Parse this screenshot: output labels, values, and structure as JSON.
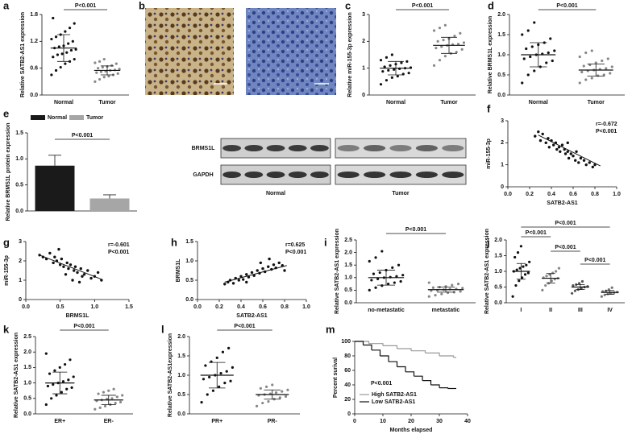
{
  "chart_data": [
    {
      "panel": "a",
      "type": "dot",
      "ylabel": "Relative SATB2-AS1 expression",
      "categories": [
        "Normal",
        "Tumor"
      ],
      "colors": [
        "#111111",
        "#888888"
      ],
      "values": [
        [
          0.45,
          0.55,
          0.62,
          0.7,
          0.75,
          0.8,
          0.85,
          0.9,
          0.92,
          0.95,
          1.0,
          1.02,
          1.05,
          1.08,
          1.1,
          1.15,
          1.2,
          1.25,
          1.3,
          1.35,
          1.42,
          1.5,
          1.6,
          1.72
        ],
        [
          0.3,
          0.35,
          0.4,
          0.42,
          0.45,
          0.48,
          0.5,
          0.52,
          0.53,
          0.55,
          0.56,
          0.58,
          0.6,
          0.62,
          0.64,
          0.66,
          0.7,
          0.72,
          0.75,
          0.8
        ]
      ],
      "means": [
        1.05,
        0.55
      ],
      "sds": [
        0.3,
        0.1
      ],
      "ylim": [
        0,
        1.8
      ],
      "yticks": [
        {
          "value": 0,
          "label": "0.0"
        },
        0.6,
        1.2,
        1.8
      ],
      "annotations": [
        "P<0.001"
      ]
    },
    {
      "panel": "b",
      "type": "image"
    },
    {
      "panel": "c",
      "type": "dot",
      "ylabel": "Relative miR-155-3p expression",
      "categories": [
        "Normal",
        "Tumor"
      ],
      "colors": [
        "#111111",
        "#888888"
      ],
      "values": [
        [
          0.4,
          0.55,
          0.65,
          0.7,
          0.78,
          0.82,
          0.88,
          0.92,
          0.95,
          0.98,
          1.0,
          1.02,
          1.05,
          1.1,
          1.15,
          1.2,
          1.25,
          1.3,
          1.4,
          1.5
        ],
        [
          1.1,
          1.3,
          1.45,
          1.55,
          1.6,
          1.7,
          1.75,
          1.8,
          1.85,
          1.88,
          1.9,
          1.95,
          2.0,
          2.05,
          2.1,
          2.2,
          2.3,
          2.4,
          2.5,
          2.6
        ]
      ],
      "means": [
        1.0,
        1.85
      ],
      "sds": [
        0.25,
        0.3
      ],
      "ylim": [
        0,
        3
      ],
      "yticks": [
        0,
        1,
        2,
        3
      ],
      "annotations": [
        "P<0.001"
      ]
    },
    {
      "panel": "d",
      "type": "dot",
      "ylabel": "Relative BRMS1L expression",
      "categories": [
        "Normal",
        "Tumor"
      ],
      "colors": [
        "#111111",
        "#888888"
      ],
      "values": [
        [
          0.3,
          0.5,
          0.6,
          0.7,
          0.8,
          0.85,
          0.9,
          0.95,
          1.0,
          1.02,
          1.05,
          1.1,
          1.15,
          1.2,
          1.25,
          1.3,
          1.4,
          1.5,
          1.6,
          1.8
        ],
        [
          0.3,
          0.38,
          0.42,
          0.48,
          0.5,
          0.54,
          0.57,
          0.6,
          0.62,
          0.64,
          0.66,
          0.7,
          0.72,
          0.75,
          0.8,
          0.85,
          0.9,
          0.95,
          1.05,
          1.1
        ]
      ],
      "means": [
        1.0,
        0.62
      ],
      "sds": [
        0.3,
        0.15
      ],
      "ylim": [
        0,
        2
      ],
      "yticks": [
        {
          "value": 0,
          "label": "0.0"
        },
        0.5,
        {
          "value": 1,
          "label": "1.0"
        },
        1.5,
        {
          "value": 2,
          "label": "2.0"
        }
      ],
      "annotations": [
        "P<0.001"
      ]
    },
    {
      "panel": "e",
      "type": "bar",
      "ylabel": "Relative BRMS1L protein expression",
      "series": [
        {
          "name": "Normal",
          "color": "#1a1a1a",
          "values": [
            0.87
          ],
          "errors": [
            0.2
          ]
        },
        {
          "name": "Tumor",
          "color": "#a6a6a6",
          "values": [
            0.24
          ],
          "errors": [
            0.07
          ]
        }
      ],
      "ylim": [
        0,
        1.5
      ],
      "yticks": [
        {
          "value": 0,
          "label": "0.0"
        },
        0.5,
        {
          "value": 1,
          "label": "1.0"
        },
        1.5
      ],
      "annotations": [
        "P<0.001"
      ],
      "blot": {
        "rows": [
          "BRMS1L",
          "GAPDH"
        ],
        "groups": [
          "Normal",
          "Tumor"
        ]
      }
    },
    {
      "panel": "f",
      "type": "scatter",
      "xlabel": "SATB2-AS1",
      "ylabel": "miR-155-3p",
      "stats": [
        "r=-0.672",
        "P<0.001"
      ],
      "x": [
        0.25,
        0.28,
        0.3,
        0.32,
        0.35,
        0.37,
        0.4,
        0.42,
        0.44,
        0.45,
        0.47,
        0.48,
        0.5,
        0.52,
        0.53,
        0.55,
        0.56,
        0.58,
        0.6,
        0.62,
        0.63,
        0.65,
        0.67,
        0.7,
        0.72,
        0.75,
        0.78,
        0.8,
        0.38,
        0.55
      ],
      "values": [
        2.3,
        2.5,
        2.1,
        2.4,
        2.0,
        2.2,
        2.1,
        1.9,
        2.0,
        1.7,
        1.8,
        1.6,
        1.9,
        1.7,
        1.5,
        1.6,
        1.3,
        1.5,
        1.4,
        1.2,
        1.6,
        1.1,
        1.3,
        1.2,
        1.0,
        1.1,
        0.9,
        1.0,
        1.8,
        2.0
      ],
      "fit_x": [
        0.28,
        0.85
      ],
      "fit_y": [
        2.35,
        0.95
      ],
      "xlim": [
        0,
        1
      ],
      "xticks": [
        {
          "value": 0,
          "label": "0.0"
        },
        0.2,
        0.4,
        0.6,
        0.8,
        {
          "value": 1,
          "label": "1.0"
        }
      ],
      "ylim": [
        0,
        3
      ],
      "yticks": [
        0,
        1,
        2,
        3
      ]
    },
    {
      "panel": "g",
      "type": "scatter",
      "xlabel": "BRMS1L",
      "ylabel": "miR-155-3p",
      "stats": [
        "r=-0.601",
        "P<0.001"
      ],
      "x": [
        0.2,
        0.25,
        0.3,
        0.35,
        0.4,
        0.42,
        0.45,
        0.5,
        0.52,
        0.55,
        0.6,
        0.62,
        0.65,
        0.7,
        0.72,
        0.75,
        0.8,
        0.82,
        0.85,
        0.9,
        0.95,
        1.0,
        1.05,
        1.1,
        0.48,
        0.68,
        0.78,
        0.58
      ],
      "values": [
        2.3,
        2.2,
        2.1,
        2.4,
        1.9,
        2.2,
        2.0,
        1.8,
        2.1,
        1.7,
        1.9,
        1.6,
        1.8,
        1.5,
        1.7,
        1.4,
        1.6,
        1.2,
        1.3,
        1.5,
        1.1,
        1.2,
        1.4,
        1.0,
        2.6,
        1.0,
        0.9,
        1.3
      ],
      "fit_x": [
        0.2,
        1.1
      ],
      "fit_y": [
        2.3,
        1.05
      ],
      "xlim": [
        0,
        1.5
      ],
      "xticks": [
        {
          "value": 0,
          "label": "0.0"
        },
        0.5,
        {
          "value": 1,
          "label": "1.0"
        },
        1.5
      ],
      "ylim": [
        0,
        3
      ],
      "yticks": [
        0,
        1,
        2,
        3
      ]
    },
    {
      "panel": "h",
      "type": "scatter",
      "xlabel": "SATB2-AS1",
      "ylabel": "BRMS1L",
      "stats": [
        "r=0.625",
        "P<0.001"
      ],
      "x": [
        0.25,
        0.28,
        0.3,
        0.33,
        0.35,
        0.38,
        0.4,
        0.42,
        0.45,
        0.47,
        0.5,
        0.52,
        0.55,
        0.57,
        0.6,
        0.62,
        0.65,
        0.68,
        0.7,
        0.72,
        0.75,
        0.78,
        0.8,
        0.45,
        0.58,
        0.66
      ],
      "values": [
        0.4,
        0.45,
        0.5,
        0.42,
        0.55,
        0.5,
        0.6,
        0.52,
        0.65,
        0.58,
        0.7,
        0.62,
        0.75,
        0.68,
        0.8,
        0.72,
        0.85,
        0.78,
        0.9,
        0.82,
        0.95,
        0.88,
        0.75,
        0.45,
        0.95,
        1.05
      ],
      "fit_x": [
        0.25,
        0.82
      ],
      "fit_y": [
        0.45,
        0.88
      ],
      "xlim": [
        0,
        1
      ],
      "xticks": [
        {
          "value": 0,
          "label": "0.0"
        },
        0.2,
        0.4,
        0.6,
        0.8,
        {
          "value": 1,
          "label": "1.0"
        }
      ],
      "ylim": [
        0,
        1.5
      ],
      "yticks": [
        {
          "value": 0,
          "label": "0.0"
        },
        0.5,
        {
          "value": 1,
          "label": "1.0"
        },
        1.5
      ]
    },
    {
      "panel": "i",
      "type": "dot",
      "ylabel": "Relative SATB2-AS1 expression",
      "categories": [
        "no-metastatic",
        "metastatic"
      ],
      "colors": [
        "#111111",
        "#888888"
      ],
      "values": [
        [
          0.5,
          0.6,
          0.68,
          0.75,
          0.8,
          0.85,
          0.9,
          0.95,
          1.0,
          1.02,
          1.05,
          1.1,
          1.15,
          1.2,
          1.3,
          1.4,
          1.5,
          1.65,
          1.8,
          2.05
        ],
        [
          0.25,
          0.3,
          0.35,
          0.4,
          0.42,
          0.45,
          0.48,
          0.5,
          0.52,
          0.54,
          0.55,
          0.58,
          0.6,
          0.62,
          0.65,
          0.7,
          0.75,
          0.8
        ]
      ],
      "means": [
        1.0,
        0.52
      ],
      "sds": [
        0.3,
        0.1
      ],
      "ylim": [
        0,
        2.5
      ],
      "yticks": [
        {
          "value": 0,
          "label": "0.0"
        },
        0.5,
        {
          "value": 1,
          "label": "1.0"
        },
        1.5,
        {
          "value": 2,
          "label": "2.0"
        },
        2.5
      ],
      "annotations": [
        "P<0.001"
      ]
    },
    {
      "panel": "j",
      "type": "dot",
      "ylabel": "Relative SATB2-AS1 expression",
      "categories": [
        "I",
        "II",
        "III",
        "IV"
      ],
      "colors": [
        "#111111",
        "#888888",
        "#555555",
        "#777777"
      ],
      "values": [
        [
          0.2,
          0.55,
          0.7,
          0.8,
          0.9,
          0.95,
          1.0,
          1.05,
          1.1,
          1.15,
          1.2,
          1.3,
          1.45,
          1.6,
          1.8
        ],
        [
          0.4,
          0.55,
          0.62,
          0.7,
          0.75,
          0.78,
          0.8,
          0.85,
          0.9,
          0.95,
          1.0,
          1.1
        ],
        [
          0.3,
          0.38,
          0.42,
          0.46,
          0.5,
          0.52,
          0.55,
          0.58,
          0.62,
          0.68
        ],
        [
          0.2,
          0.25,
          0.28,
          0.3,
          0.32,
          0.34,
          0.36,
          0.38,
          0.42,
          0.48
        ]
      ],
      "means": [
        1.0,
        0.78,
        0.5,
        0.33
      ],
      "sds": [
        0.25,
        0.15,
        0.08,
        0.06
      ],
      "ylim": [
        0,
        2
      ],
      "yticks": [
        {
          "value": 0,
          "label": "0.0"
        },
        0.5,
        {
          "value": 1,
          "label": "1.0"
        },
        1.5,
        {
          "value": 2,
          "label": "2.0"
        }
      ],
      "annotations": [
        "P<0.001",
        "P<0.001",
        "P<0.001",
        "P<0.001"
      ]
    },
    {
      "panel": "k",
      "type": "dot",
      "ylabel": "Relative SATB2-AS1 expression",
      "categories": [
        "ER+",
        "ER-"
      ],
      "colors": [
        "#111111",
        "#888888"
      ],
      "values": [
        [
          0.3,
          0.5,
          0.6,
          0.7,
          0.8,
          0.85,
          0.9,
          0.95,
          1.0,
          1.05,
          1.1,
          1.2,
          1.3,
          1.4,
          1.5,
          1.6,
          1.75,
          1.95
        ],
        [
          0.15,
          0.2,
          0.25,
          0.3,
          0.35,
          0.38,
          0.42,
          0.45,
          0.48,
          0.5,
          0.55,
          0.6,
          0.65,
          0.7,
          0.75,
          0.8
        ]
      ],
      "means": [
        1.0,
        0.45
      ],
      "sds": [
        0.35,
        0.15
      ],
      "ylim": [
        0,
        2.5
      ],
      "yticks": [
        {
          "value": 0,
          "label": "0.0"
        },
        0.5,
        {
          "value": 1,
          "label": "1.0"
        },
        1.5,
        {
          "value": 2,
          "label": "2.0"
        },
        2.5
      ],
      "annotations": [
        "P<0.001"
      ]
    },
    {
      "panel": "l",
      "type": "dot",
      "ylabel": "Relative SATB2-AS1expression",
      "categories": [
        "PR+",
        "PR-"
      ],
      "colors": [
        "#111111",
        "#888888"
      ],
      "values": [
        [
          0.3,
          0.5,
          0.6,
          0.7,
          0.8,
          0.85,
          0.9,
          0.95,
          1.0,
          1.05,
          1.1,
          1.2,
          1.25,
          1.35,
          1.45,
          1.6,
          1.7
        ],
        [
          0.2,
          0.28,
          0.32,
          0.38,
          0.42,
          0.45,
          0.48,
          0.5,
          0.52,
          0.55,
          0.58,
          0.62,
          0.66,
          0.7,
          0.75
        ]
      ],
      "means": [
        1.0,
        0.5
      ],
      "sds": [
        0.33,
        0.12
      ],
      "ylim": [
        0,
        2
      ],
      "yticks": [
        {
          "value": 0,
          "label": "0.0"
        },
        0.5,
        {
          "value": 1,
          "label": "1.0"
        },
        1.5,
        {
          "value": 2,
          "label": "2.0"
        }
      ],
      "annotations": [
        "P<0.001"
      ]
    },
    {
      "panel": "m",
      "type": "survival",
      "xlabel": "Months elapsed",
      "ylabel": "Percent surival",
      "annotations": [
        "P<0.001"
      ],
      "series": [
        {
          "name": "High SATB2-AS1",
          "color": "#999999",
          "x": [
            0,
            5,
            10,
            15,
            20,
            25,
            30,
            35,
            36
          ],
          "values": [
            100,
            97,
            94,
            90,
            87,
            84,
            80,
            78,
            78
          ]
        },
        {
          "name": "Low SATB2-AS1",
          "color": "#111111",
          "x": [
            0,
            3,
            6,
            9,
            12,
            15,
            18,
            21,
            24,
            27,
            30,
            33,
            36
          ],
          "values": [
            100,
            95,
            88,
            80,
            72,
            65,
            58,
            52,
            46,
            40,
            36,
            35,
            35
          ]
        }
      ],
      "xlim": [
        0,
        40
      ],
      "xticks": [
        0,
        10,
        20,
        30,
        40
      ],
      "ylim": [
        0,
        100
      ],
      "yticks": [
        0,
        20,
        40,
        60,
        80,
        100
      ]
    }
  ]
}
